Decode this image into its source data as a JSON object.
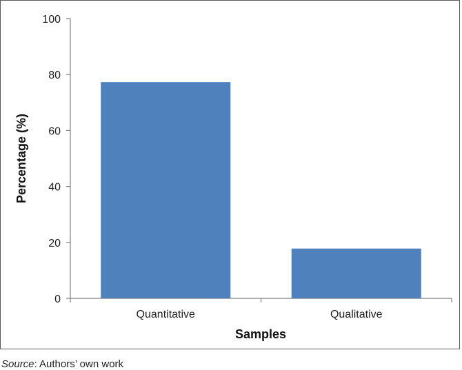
{
  "chart_data": {
    "type": "bar",
    "categories": [
      "Quantitative",
      "Qualitative"
    ],
    "values": [
      77.3,
      17.8
    ],
    "xlabel": "Samples",
    "ylabel": "Percentage (%)",
    "ylim": [
      0,
      100
    ],
    "yticks": [
      0,
      20,
      40,
      60,
      80,
      100
    ],
    "bar_color": "#4f81bd",
    "grid": false,
    "legend": "none"
  },
  "source": {
    "label": "Source",
    "text": ": Authors’ own work"
  }
}
